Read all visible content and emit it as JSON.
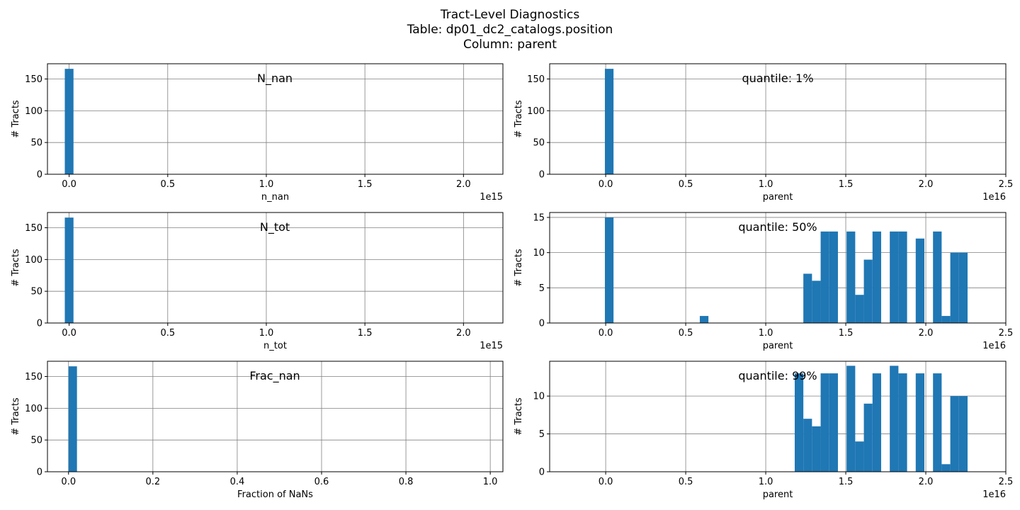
{
  "figure": {
    "title_line1": "Tract-Level Diagnostics",
    "title_line2": "Table:  dp01_dc2_catalogs.position",
    "title_line3": "Column:  parent"
  },
  "colors": {
    "bar": "#1f77b4",
    "grid": "#808080",
    "axis": "#000000"
  },
  "chart_data": [
    {
      "type": "bar",
      "title": "N_nan",
      "xlabel": "n_nan",
      "ylabel": "# Tracts",
      "x_offset_label": "1e15",
      "xlim": [
        -0.11,
        2.2
      ],
      "ylim": [
        0,
        174
      ],
      "xticks": [
        0,
        0.5,
        1,
        1.5,
        2
      ],
      "xtick_labels": [
        "0.0",
        "0.5",
        "1.0",
        "1.5",
        "2.0"
      ],
      "yticks": [
        0,
        50,
        100,
        150
      ],
      "ytick_labels": [
        "0",
        "50",
        "100",
        "150"
      ],
      "bar_width": 0.044,
      "bars": [
        {
          "x": -0.022,
          "value": 166
        }
      ],
      "grid": true
    },
    {
      "type": "bar",
      "title": "quantile: 1%",
      "xlabel": "parent",
      "ylabel": "# Tracts",
      "x_offset_label": "1e16",
      "xlim": [
        -0.35,
        2.5
      ],
      "ylim": [
        0,
        174
      ],
      "xticks": [
        0,
        0.5,
        1,
        1.5,
        2,
        2.5
      ],
      "xtick_labels": [
        "0.0",
        "0.5",
        "1.0",
        "1.5",
        "2.0",
        "2.5"
      ],
      "yticks": [
        0,
        50,
        100,
        150
      ],
      "ytick_labels": [
        "0",
        "50",
        "100",
        "150"
      ],
      "bar_width": 0.054,
      "bars": [
        {
          "x": -0.005,
          "value": 166
        }
      ],
      "grid": true
    },
    {
      "type": "bar",
      "title": "N_tot",
      "xlabel": "n_tot",
      "ylabel": "# Tracts",
      "x_offset_label": "1e15",
      "xlim": [
        -0.11,
        2.2
      ],
      "ylim": [
        0,
        174
      ],
      "xticks": [
        0,
        0.5,
        1,
        1.5,
        2
      ],
      "xtick_labels": [
        "0.0",
        "0.5",
        "1.0",
        "1.5",
        "2.0"
      ],
      "yticks": [
        0,
        50,
        100,
        150
      ],
      "ytick_labels": [
        "0",
        "50",
        "100",
        "150"
      ],
      "bar_width": 0.044,
      "bars": [
        {
          "x": -0.022,
          "value": 166
        }
      ],
      "grid": true
    },
    {
      "type": "bar",
      "title": "quantile: 50%",
      "xlabel": "parent",
      "ylabel": "# Tracts",
      "x_offset_label": "1e16",
      "xlim": [
        -0.35,
        2.5
      ],
      "ylim": [
        0,
        15.7
      ],
      "xticks": [
        0,
        0.5,
        1,
        1.5,
        2,
        2.5
      ],
      "xtick_labels": [
        "0.0",
        "0.5",
        "1.0",
        "1.5",
        "2.0",
        "2.5"
      ],
      "yticks": [
        0,
        5,
        10,
        15
      ],
      "ytick_labels": [
        "0",
        "5",
        "10",
        "15"
      ],
      "bar_width": 0.054,
      "bars": [
        {
          "x": -0.005,
          "value": 15
        },
        {
          "x": 0.588,
          "value": 1
        },
        {
          "x": 1.235,
          "value": 7
        },
        {
          "x": 1.289,
          "value": 6
        },
        {
          "x": 1.343,
          "value": 13
        },
        {
          "x": 1.397,
          "value": 13
        },
        {
          "x": 1.505,
          "value": 13
        },
        {
          "x": 1.559,
          "value": 4
        },
        {
          "x": 1.613,
          "value": 9
        },
        {
          "x": 1.667,
          "value": 13
        },
        {
          "x": 1.775,
          "value": 13
        },
        {
          "x": 1.829,
          "value": 13
        },
        {
          "x": 1.937,
          "value": 12
        },
        {
          "x": 2.045,
          "value": 13
        },
        {
          "x": 2.099,
          "value": 1
        },
        {
          "x": 2.153,
          "value": 10
        },
        {
          "x": 2.207,
          "value": 10
        }
      ],
      "grid": true
    },
    {
      "type": "bar",
      "title": "Frac_nan",
      "xlabel": "Fraction of NaNs",
      "ylabel": "# Tracts",
      "x_offset_label": "",
      "xlim": [
        -0.05,
        1.03
      ],
      "ylim": [
        0,
        174
      ],
      "xticks": [
        0,
        0.2,
        0.4,
        0.6,
        0.8,
        1
      ],
      "xtick_labels": [
        "0.0",
        "0.2",
        "0.4",
        "0.6",
        "0.8",
        "1.0"
      ],
      "yticks": [
        0,
        50,
        100,
        150
      ],
      "ytick_labels": [
        "0",
        "50",
        "100",
        "150"
      ],
      "bar_width": 0.02,
      "bars": [
        {
          "x": 0,
          "value": 166
        }
      ],
      "grid": true
    },
    {
      "type": "bar",
      "title": "quantile: 99%",
      "xlabel": "parent",
      "ylabel": "# Tracts",
      "x_offset_label": "1e16",
      "xlim": [
        -0.35,
        2.5
      ],
      "ylim": [
        0,
        14.6
      ],
      "xticks": [
        0,
        0.5,
        1,
        1.5,
        2,
        2.5
      ],
      "xtick_labels": [
        "0.0",
        "0.5",
        "1.0",
        "1.5",
        "2.0",
        "2.5"
      ],
      "yticks": [
        0,
        5,
        10
      ],
      "ytick_labels": [
        "0",
        "5",
        "10"
      ],
      "bar_width": 0.054,
      "bars": [
        {
          "x": 1.181,
          "value": 13
        },
        {
          "x": 1.235,
          "value": 7
        },
        {
          "x": 1.289,
          "value": 6
        },
        {
          "x": 1.343,
          "value": 13
        },
        {
          "x": 1.397,
          "value": 13
        },
        {
          "x": 1.505,
          "value": 14
        },
        {
          "x": 1.559,
          "value": 4
        },
        {
          "x": 1.613,
          "value": 9
        },
        {
          "x": 1.667,
          "value": 13
        },
        {
          "x": 1.775,
          "value": 14
        },
        {
          "x": 1.829,
          "value": 13
        },
        {
          "x": 1.937,
          "value": 13
        },
        {
          "x": 2.045,
          "value": 13
        },
        {
          "x": 2.099,
          "value": 1
        },
        {
          "x": 2.153,
          "value": 10
        },
        {
          "x": 2.207,
          "value": 10
        }
      ],
      "grid": true
    }
  ]
}
